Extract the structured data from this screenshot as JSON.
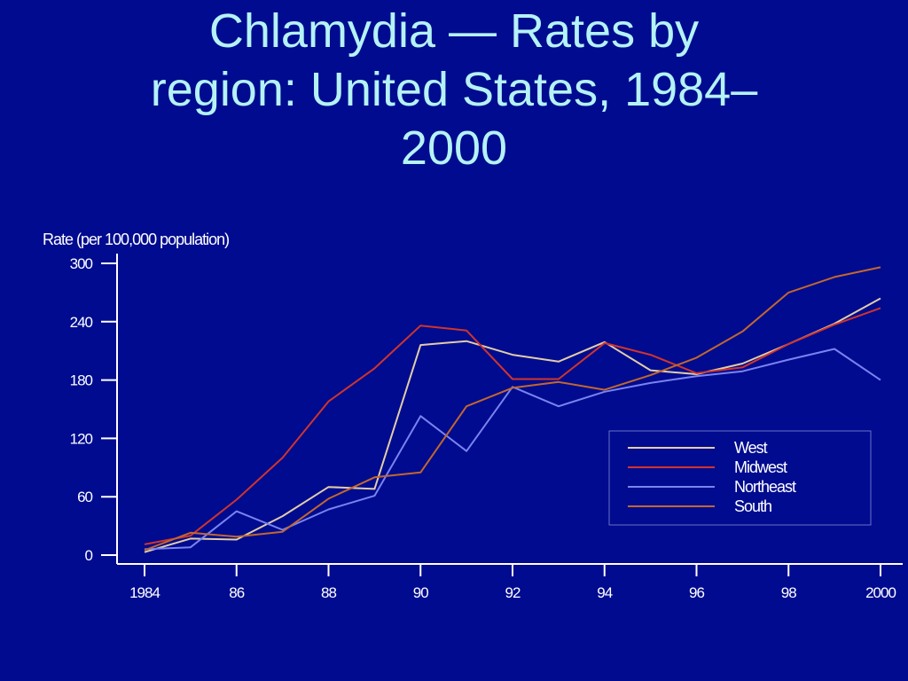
{
  "title": "Chlamydia   —   Rates by\nregion: United States, 1984–\n2000",
  "chart_data": {
    "type": "line",
    "ylabel": "Rate (per 100,000 population)",
    "xlabel": "",
    "ylim": [
      0,
      300
    ],
    "yticks": [
      0,
      60,
      120,
      180,
      240,
      300
    ],
    "x": [
      1984,
      1985,
      1986,
      1987,
      1988,
      1989,
      1990,
      1991,
      1992,
      1993,
      1994,
      1995,
      1996,
      1997,
      1998,
      1999,
      2000
    ],
    "xticks": [
      1984,
      1986,
      1988,
      1990,
      1992,
      1994,
      1996,
      1998,
      2000
    ],
    "xtick_labels": [
      "1984",
      "86",
      "88",
      "90",
      "92",
      "94",
      "96",
      "98",
      "2000"
    ],
    "grid": false,
    "legend_position": "lower-right",
    "series": [
      {
        "name": "West",
        "color": "#E2CDA8",
        "values": [
          3,
          17,
          16,
          40,
          70,
          68,
          216,
          220,
          206,
          199,
          219,
          190,
          186,
          197,
          217,
          238,
          264
        ]
      },
      {
        "name": "Midwest",
        "color": "#D0342C",
        "values": [
          11,
          20,
          57,
          100,
          158,
          192,
          236,
          231,
          181,
          181,
          218,
          206,
          187,
          193,
          217,
          237,
          254
        ]
      },
      {
        "name": "Northeast",
        "color": "#7A83F0",
        "values": [
          6,
          8,
          45,
          26,
          47,
          61,
          143,
          107,
          173,
          153,
          168,
          177,
          184,
          189,
          201,
          212,
          180
        ]
      },
      {
        "name": "South",
        "color": "#C2672E",
        "values": [
          5,
          23,
          19,
          24,
          58,
          80,
          85,
          153,
          172,
          178,
          170,
          185,
          203,
          230,
          270,
          286,
          296
        ]
      }
    ]
  }
}
